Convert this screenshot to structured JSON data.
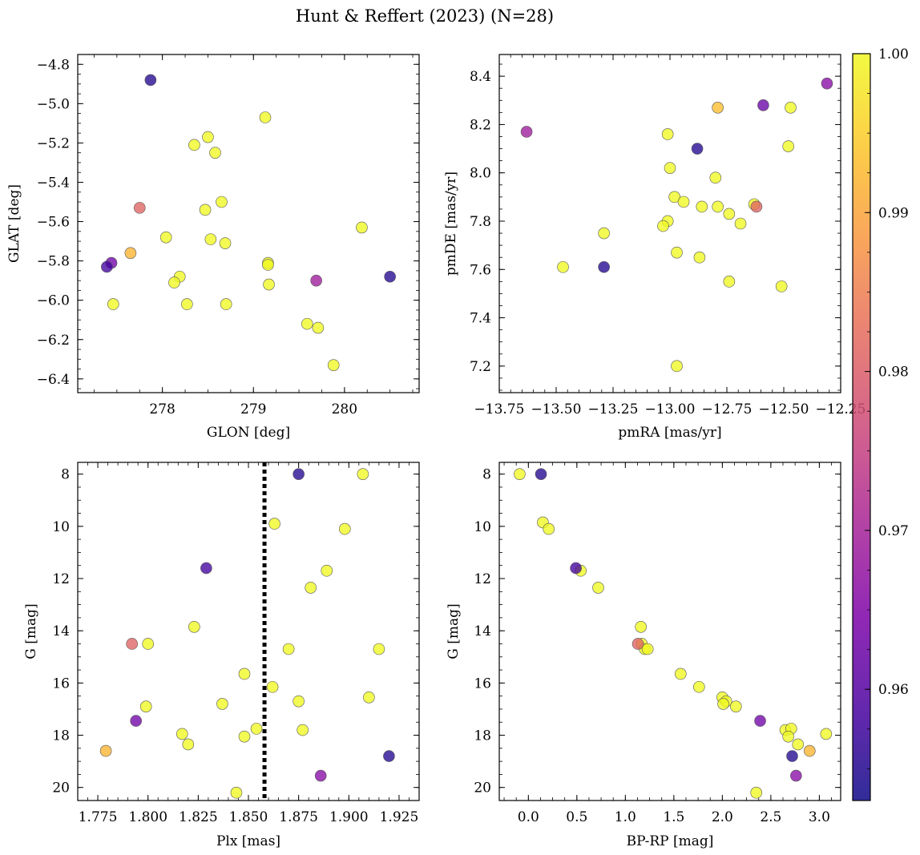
{
  "title": "Hunt & Reffert (2023) (N=28)",
  "colorbar": {
    "vmin": 0.953,
    "vmax": 1.0,
    "ticks": [
      0.96,
      0.97,
      0.98,
      0.99,
      1.0
    ],
    "tick_labels": [
      "0.96",
      "0.97",
      "0.98",
      "0.99",
      "1.00"
    ],
    "colormap": "plasma"
  },
  "chart_data": [
    {
      "id": "glon-glat",
      "type": "scatter",
      "xlabel": "GLON [deg]",
      "ylabel": "GLAT [deg]",
      "xlim": [
        277.07,
        280.82
      ],
      "ylim": [
        -6.47,
        -4.75
      ],
      "invert_y": false,
      "xticks": [
        278,
        279,
        280
      ],
      "xtick_labels": [
        "278",
        "279",
        "280"
      ],
      "yticks": [
        -6.4,
        -6.2,
        -6.0,
        -5.8,
        -5.6,
        -5.4,
        -5.2,
        -5.0,
        -4.8
      ],
      "ytick_labels": [
        "−6.4",
        "−6.2",
        "−6.0",
        "−5.8",
        "−5.6",
        "−5.4",
        "−5.2",
        "−5.0",
        "−4.8"
      ],
      "points": [
        {
          "x": 277.87,
          "y": -4.88,
          "c": 0.955
        },
        {
          "x": 279.13,
          "y": -5.07,
          "c": 1.0
        },
        {
          "x": 278.5,
          "y": -5.17,
          "c": 1.0
        },
        {
          "x": 278.35,
          "y": -5.21,
          "c": 1.0
        },
        {
          "x": 278.58,
          "y": -5.25,
          "c": 1.0
        },
        {
          "x": 278.65,
          "y": -5.5,
          "c": 1.0
        },
        {
          "x": 277.75,
          "y": -5.53,
          "c": 0.981
        },
        {
          "x": 278.47,
          "y": -5.54,
          "c": 1.0
        },
        {
          "x": 280.19,
          "y": -5.63,
          "c": 1.0
        },
        {
          "x": 278.04,
          "y": -5.68,
          "c": 1.0
        },
        {
          "x": 278.53,
          "y": -5.69,
          "c": 1.0
        },
        {
          "x": 278.69,
          "y": -5.71,
          "c": 1.0
        },
        {
          "x": 277.65,
          "y": -5.76,
          "c": 0.992
        },
        {
          "x": 277.44,
          "y": -5.81,
          "c": 0.963
        },
        {
          "x": 279.16,
          "y": -5.81,
          "c": 1.0
        },
        {
          "x": 277.39,
          "y": -5.83,
          "c": 0.958
        },
        {
          "x": 279.16,
          "y": -5.82,
          "c": 1.0
        },
        {
          "x": 280.5,
          "y": -5.88,
          "c": 0.955
        },
        {
          "x": 278.19,
          "y": -5.88,
          "c": 1.0
        },
        {
          "x": 279.69,
          "y": -5.9,
          "c": 0.969
        },
        {
          "x": 278.13,
          "y": -5.91,
          "c": 1.0
        },
        {
          "x": 279.17,
          "y": -5.92,
          "c": 1.0
        },
        {
          "x": 277.46,
          "y": -6.02,
          "c": 1.0
        },
        {
          "x": 278.27,
          "y": -6.02,
          "c": 1.0
        },
        {
          "x": 278.7,
          "y": -6.02,
          "c": 1.0
        },
        {
          "x": 279.59,
          "y": -6.12,
          "c": 1.0
        },
        {
          "x": 279.71,
          "y": -6.14,
          "c": 1.0
        },
        {
          "x": 279.88,
          "y": -6.33,
          "c": 1.0
        }
      ]
    },
    {
      "id": "pmra-pmde",
      "type": "scatter",
      "xlabel": "pmRA [mas/yr]",
      "ylabel": "pmDE [mas/yr]",
      "xlim": [
        -13.75,
        -12.25
      ],
      "ylim": [
        7.09,
        8.49
      ],
      "invert_y": false,
      "xticks": [
        -13.75,
        -13.5,
        -13.25,
        -13.0,
        -12.75,
        -12.5,
        -12.25
      ],
      "xtick_labels": [
        "−13.75",
        "−13.50",
        "−13.25",
        "−13.00",
        "−12.75",
        "−12.50",
        "−12.25"
      ],
      "yticks": [
        7.2,
        7.4,
        7.6,
        7.8,
        8.0,
        8.2,
        8.4
      ],
      "ytick_labels": [
        "7.2",
        "7.4",
        "7.6",
        "7.8",
        "8.0",
        "8.2",
        "8.4"
      ],
      "points": [
        {
          "x": -12.31,
          "y": 8.37,
          "c": 0.966
        },
        {
          "x": -12.59,
          "y": 8.28,
          "c": 0.962
        },
        {
          "x": -12.47,
          "y": 8.27,
          "c": 1.0
        },
        {
          "x": -12.79,
          "y": 8.27,
          "c": 0.993
        },
        {
          "x": -13.63,
          "y": 8.17,
          "c": 0.969
        },
        {
          "x": -13.01,
          "y": 8.16,
          "c": 1.0
        },
        {
          "x": -12.48,
          "y": 8.11,
          "c": 1.0
        },
        {
          "x": -12.88,
          "y": 8.1,
          "c": 0.955
        },
        {
          "x": -13.0,
          "y": 8.02,
          "c": 1.0
        },
        {
          "x": -12.8,
          "y": 7.98,
          "c": 1.0
        },
        {
          "x": -12.98,
          "y": 7.9,
          "c": 1.0
        },
        {
          "x": -12.94,
          "y": 7.88,
          "c": 1.0
        },
        {
          "x": -12.63,
          "y": 7.87,
          "c": 1.0
        },
        {
          "x": -12.86,
          "y": 7.86,
          "c": 1.0
        },
        {
          "x": -12.79,
          "y": 7.86,
          "c": 1.0
        },
        {
          "x": -12.62,
          "y": 7.86,
          "c": 0.981
        },
        {
          "x": -12.74,
          "y": 7.83,
          "c": 1.0
        },
        {
          "x": -13.01,
          "y": 7.8,
          "c": 1.0
        },
        {
          "x": -13.03,
          "y": 7.78,
          "c": 1.0
        },
        {
          "x": -12.69,
          "y": 7.79,
          "c": 1.0
        },
        {
          "x": -13.29,
          "y": 7.75,
          "c": 1.0
        },
        {
          "x": -12.97,
          "y": 7.67,
          "c": 1.0
        },
        {
          "x": -12.87,
          "y": 7.65,
          "c": 1.0
        },
        {
          "x": -13.47,
          "y": 7.61,
          "c": 1.0
        },
        {
          "x": -13.29,
          "y": 7.61,
          "c": 0.955
        },
        {
          "x": -12.74,
          "y": 7.55,
          "c": 1.0
        },
        {
          "x": -12.51,
          "y": 7.53,
          "c": 1.0
        },
        {
          "x": -12.97,
          "y": 7.2,
          "c": 1.0
        }
      ]
    },
    {
      "id": "plx-g",
      "type": "scatter",
      "xlabel": "Plx [mas]",
      "ylabel": "G [mag]",
      "xlim": [
        1.765,
        1.935
      ],
      "ylim": [
        20.5,
        7.55
      ],
      "invert_y": true,
      "vline": 1.858,
      "xticks": [
        1.775,
        1.8,
        1.825,
        1.85,
        1.875,
        1.9,
        1.925
      ],
      "xtick_labels": [
        "1.775",
        "1.800",
        "1.825",
        "1.850",
        "1.875",
        "1.900",
        "1.925"
      ],
      "yticks": [
        8,
        10,
        12,
        14,
        16,
        18,
        20
      ],
      "ytick_labels": [
        "8",
        "10",
        "12",
        "14",
        "16",
        "18",
        "20"
      ],
      "points": [
        {
          "x": 1.875,
          "y": 8.0,
          "c": 0.955
        },
        {
          "x": 1.907,
          "y": 8.0,
          "c": 1.0
        },
        {
          "x": 1.863,
          "y": 9.9,
          "c": 1.0
        },
        {
          "x": 1.898,
          "y": 10.1,
          "c": 1.0
        },
        {
          "x": 1.829,
          "y": 11.6,
          "c": 0.958
        },
        {
          "x": 1.889,
          "y": 11.7,
          "c": 1.0
        },
        {
          "x": 1.881,
          "y": 12.35,
          "c": 1.0
        },
        {
          "x": 1.823,
          "y": 13.85,
          "c": 1.0
        },
        {
          "x": 1.792,
          "y": 14.5,
          "c": 0.981
        },
        {
          "x": 1.8,
          "y": 14.5,
          "c": 1.0
        },
        {
          "x": 1.87,
          "y": 14.7,
          "c": 1.0
        },
        {
          "x": 1.915,
          "y": 14.7,
          "c": 1.0
        },
        {
          "x": 1.848,
          "y": 15.65,
          "c": 1.0
        },
        {
          "x": 1.862,
          "y": 16.15,
          "c": 1.0
        },
        {
          "x": 1.91,
          "y": 16.55,
          "c": 1.0
        },
        {
          "x": 1.875,
          "y": 16.7,
          "c": 1.0
        },
        {
          "x": 1.837,
          "y": 16.8,
          "c": 1.0
        },
        {
          "x": 1.799,
          "y": 16.9,
          "c": 1.0
        },
        {
          "x": 1.854,
          "y": 17.75,
          "c": 1.0
        },
        {
          "x": 1.877,
          "y": 17.8,
          "c": 1.0
        },
        {
          "x": 1.817,
          "y": 17.95,
          "c": 1.0
        },
        {
          "x": 1.848,
          "y": 18.05,
          "c": 1.0
        },
        {
          "x": 1.82,
          "y": 18.35,
          "c": 1.0
        },
        {
          "x": 1.794,
          "y": 17.45,
          "c": 0.963
        },
        {
          "x": 1.779,
          "y": 18.6,
          "c": 0.992
        },
        {
          "x": 1.92,
          "y": 18.8,
          "c": 0.955
        },
        {
          "x": 1.886,
          "y": 19.55,
          "c": 0.966
        },
        {
          "x": 1.844,
          "y": 20.2,
          "c": 1.0
        }
      ]
    },
    {
      "id": "bprp-g",
      "type": "scatter",
      "xlabel": "BP-RP [mag]",
      "ylabel": "G [mag]",
      "xlim": [
        -0.3,
        3.22
      ],
      "ylim": [
        20.5,
        7.55
      ],
      "invert_y": true,
      "xticks": [
        0.0,
        0.5,
        1.0,
        1.5,
        2.0,
        2.5,
        3.0
      ],
      "xtick_labels": [
        "0.0",
        "0.5",
        "1.0",
        "1.5",
        "2.0",
        "2.5",
        "3.0"
      ],
      "yticks": [
        8,
        10,
        12,
        14,
        16,
        18,
        20
      ],
      "ytick_labels": [
        "8",
        "10",
        "12",
        "14",
        "16",
        "18",
        "20"
      ],
      "points": [
        {
          "x": -0.09,
          "y": 8.0,
          "c": 1.0
        },
        {
          "x": 0.13,
          "y": 8.0,
          "c": 0.955
        },
        {
          "x": 0.15,
          "y": 9.85,
          "c": 1.0
        },
        {
          "x": 0.21,
          "y": 10.1,
          "c": 1.0
        },
        {
          "x": 0.49,
          "y": 11.6,
          "c": 0.958
        },
        {
          "x": 0.54,
          "y": 11.7,
          "c": 1.0
        },
        {
          "x": 0.72,
          "y": 12.35,
          "c": 1.0
        },
        {
          "x": 1.16,
          "y": 13.85,
          "c": 1.0
        },
        {
          "x": 1.13,
          "y": 14.5,
          "c": 0.981
        },
        {
          "x": 1.17,
          "y": 14.5,
          "c": 1.0
        },
        {
          "x": 1.2,
          "y": 14.7,
          "c": 1.0
        },
        {
          "x": 1.23,
          "y": 14.7,
          "c": 1.0
        },
        {
          "x": 1.57,
          "y": 15.65,
          "c": 1.0
        },
        {
          "x": 1.76,
          "y": 16.15,
          "c": 1.0
        },
        {
          "x": 2.0,
          "y": 16.55,
          "c": 1.0
        },
        {
          "x": 2.04,
          "y": 16.7,
          "c": 1.0
        },
        {
          "x": 2.01,
          "y": 16.8,
          "c": 1.0
        },
        {
          "x": 2.14,
          "y": 16.9,
          "c": 1.0
        },
        {
          "x": 2.39,
          "y": 17.45,
          "c": 0.963
        },
        {
          "x": 2.65,
          "y": 17.8,
          "c": 1.0
        },
        {
          "x": 2.71,
          "y": 17.75,
          "c": 1.0
        },
        {
          "x": 2.68,
          "y": 18.05,
          "c": 1.0
        },
        {
          "x": 3.07,
          "y": 17.95,
          "c": 1.0
        },
        {
          "x": 2.78,
          "y": 18.35,
          "c": 1.0
        },
        {
          "x": 2.9,
          "y": 18.6,
          "c": 0.992
        },
        {
          "x": 2.72,
          "y": 18.8,
          "c": 0.955
        },
        {
          "x": 2.76,
          "y": 19.55,
          "c": 0.966
        },
        {
          "x": 2.35,
          "y": 20.2,
          "c": 1.0
        }
      ]
    }
  ]
}
